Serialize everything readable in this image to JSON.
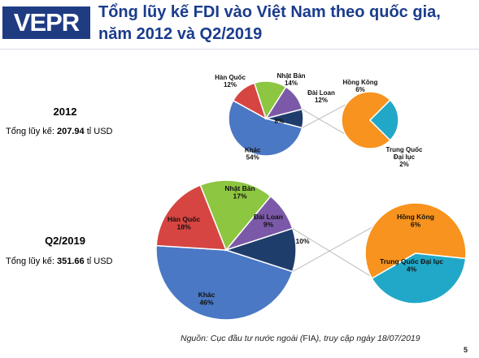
{
  "logo_text": "VEPR",
  "title": "Tổng lũy kế FDI vào Việt Nam theo quốc gia, năm 2012 và Q2/2019",
  "source_text": "Nguồn: Cục đầu tư nước ngoài (",
  "source_fia": "FIA",
  "source_tail": "), truy cập ngày 18/07/2019",
  "page_number": "5",
  "colors": {
    "Khác": "#4a78c4",
    "Hàn Quốc": "#d64541",
    "Nhật Bản": "#8dc641",
    "Đài Loan": "#7b59a8",
    "Other": "#1f3d6b",
    "Hồng Kông": "#f7931e",
    "Trung Quốc Đại lục": "#21a8c8",
    "title": "#1a3c8c",
    "logo_bg": "#1f3b82"
  },
  "chart_data": [
    {
      "type": "pie",
      "title": "2012",
      "total_label": "Tổng lũy kế: ",
      "total_value": "207.94",
      "total_unit": " tỉ USD",
      "slices": [
        {
          "label": "Khác",
          "value": 54,
          "text": "54%"
        },
        {
          "label": "Hàn Quốc",
          "value": 12,
          "text": "12%"
        },
        {
          "label": "Nhật Bản",
          "value": 14,
          "text": "14%"
        },
        {
          "label": "Đài Loan",
          "value": 12,
          "text": "12%"
        },
        {
          "label": "",
          "value": 8,
          "text": "8%",
          "exploded_into_subpie": true
        }
      ],
      "subpie": [
        {
          "label": "Hồng Kông",
          "value": 6,
          "text": "6%"
        },
        {
          "label": "Trung Quốc Đại lục",
          "value": 2,
          "text": "2%"
        }
      ]
    },
    {
      "type": "pie",
      "title": "Q2/2019",
      "total_label": "Tổng lũy kế: ",
      "total_value": "351.66",
      "total_unit": " tỉ USD",
      "slices": [
        {
          "label": "Khác",
          "value": 46,
          "text": "46%"
        },
        {
          "label": "Hàn Quốc",
          "value": 18,
          "text": "18%"
        },
        {
          "label": "Nhật Bản",
          "value": 17,
          "text": "17%"
        },
        {
          "label": "Đài Loan",
          "value": 9,
          "text": "9%"
        },
        {
          "label": "",
          "value": 10,
          "text": "10%",
          "exploded_into_subpie": true
        }
      ],
      "subpie": [
        {
          "label": "Hồng Kông",
          "value": 6,
          "text": "6%"
        },
        {
          "label": "Trung Quốc Đại lục",
          "value": 4,
          "text": "4%"
        }
      ]
    }
  ]
}
